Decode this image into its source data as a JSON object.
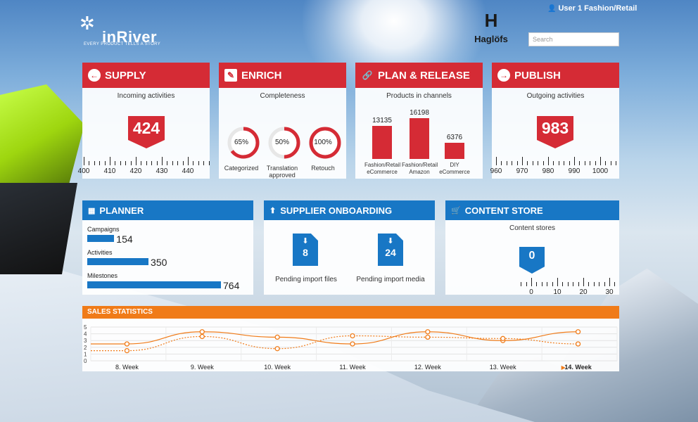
{
  "header": {
    "logo_name": "inRiver",
    "logo_tagline": "EVERY PRODUCT TELLS A STORY",
    "brand_name": "Haglöfs",
    "brand_letter": "H",
    "user_label": "User 1 Fashion/Retail",
    "search_placeholder": "Search"
  },
  "supply": {
    "title": "SUPPLY",
    "subtitle": "Incoming activities",
    "value": "424",
    "ruler_labels": [
      "400",
      "410",
      "420",
      "430",
      "440"
    ]
  },
  "enrich": {
    "title": "ENRICH",
    "subtitle": "Completeness",
    "rings": [
      {
        "label": "Categorized",
        "value_text": "65%",
        "percent": 65
      },
      {
        "label": "Translation approved",
        "value_text": "50%",
        "percent": 50
      },
      {
        "label": "Retouch",
        "value_text": "100%",
        "percent": 100
      }
    ]
  },
  "plan_release": {
    "title": "PLAN & RELEASE",
    "subtitle": "Products in channels",
    "bars": [
      {
        "label": "Fashion/Retail eCommerce",
        "value": 13135
      },
      {
        "label": "Fashion/Retail Amazon",
        "value": 16198
      },
      {
        "label": "DIY eCommerce",
        "value": 6376
      }
    ]
  },
  "publish": {
    "title": "PUBLISH",
    "subtitle": "Outgoing activities",
    "value": "983",
    "ruler_labels": [
      "960",
      "970",
      "980",
      "990",
      "1000"
    ]
  },
  "planner": {
    "title": "PLANNER",
    "rows": [
      {
        "label": "Campaigns",
        "value": 154
      },
      {
        "label": "Activities",
        "value": 350
      },
      {
        "label": "Milestones",
        "value": 764
      }
    ]
  },
  "supplier_onboarding": {
    "title": "SUPPLIER ONBOARDING",
    "items": [
      {
        "label": "Pending import files",
        "value": "8"
      },
      {
        "label": "Pending import media",
        "value": "24"
      }
    ]
  },
  "content_store": {
    "title": "CONTENT STORE",
    "subtitle": "Content stores",
    "value": "0",
    "ruler_labels": [
      "0",
      "10",
      "20",
      "30"
    ]
  },
  "sales_statistics": {
    "title": "SALES STATISTICS",
    "current_week_marker": "▶"
  },
  "chart_data": {
    "type": "line",
    "x": [
      "8. Week",
      "9. Week",
      "10. Week",
      "11. Week",
      "12. Week",
      "13. Week",
      "14. Week"
    ],
    "highlighted_category": "14. Week",
    "ylim": [
      0,
      5
    ],
    "yticks": [
      "0",
      "1",
      "2",
      "3",
      "4",
      "5"
    ],
    "series": [
      {
        "values": [
          2.5,
          4.3,
          3.5,
          2.5,
          4.3,
          3.0,
          4.3
        ],
        "style": "solid"
      },
      {
        "values": [
          1.5,
          3.6,
          1.8,
          3.7,
          3.5,
          3.3,
          2.5
        ],
        "style": "dotted"
      }
    ],
    "color": "#f07b18",
    "grid": true
  }
}
